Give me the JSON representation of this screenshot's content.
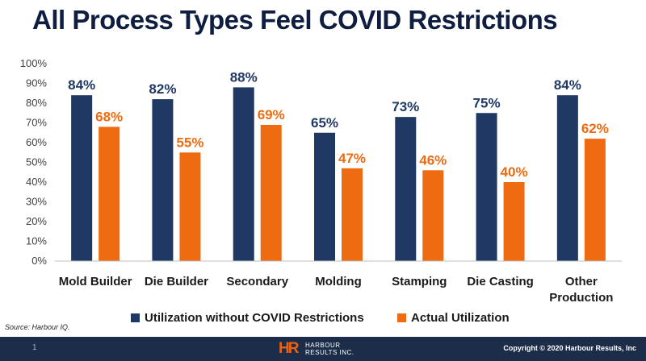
{
  "title": "All Process Types Feel COVID Restrictions",
  "source": "Source: Harbour IQ.",
  "footer": {
    "page_number": "1",
    "logo_mark": "HR",
    "logo_line1": "HARBOUR",
    "logo_line2": "RESULTS INC.",
    "copyright": "Copyright © 2020 Harbour Results, Inc"
  },
  "colors": {
    "navy": "#1f3864",
    "orange": "#ee6b12",
    "footer": "#1c2d49"
  },
  "chart_data": {
    "type": "bar",
    "categories": [
      "Mold Builder",
      "Die Builder",
      "Secondary",
      "Molding",
      "Stamping",
      "Die Casting",
      "Other Production"
    ],
    "category_lines": [
      [
        "Mold Builder"
      ],
      [
        "Die Builder"
      ],
      [
        "Secondary"
      ],
      [
        "Molding"
      ],
      [
        "Stamping"
      ],
      [
        "Die Casting"
      ],
      [
        "Other",
        "Production"
      ]
    ],
    "series": [
      {
        "name": "Utilization without COVID Restrictions",
        "color": "#1f3864",
        "values": [
          84,
          82,
          88,
          65,
          73,
          75,
          84
        ],
        "labels": [
          "84%",
          "82%",
          "88%",
          "65%",
          "73%",
          "75%",
          "84%"
        ]
      },
      {
        "name": "Actual Utilization",
        "color": "#ee6b12",
        "values": [
          68,
          55,
          69,
          47,
          46,
          40,
          62
        ],
        "labels": [
          "68%",
          "55%",
          "69%",
          "47%",
          "46%",
          "40%",
          "62%"
        ]
      }
    ],
    "yticks": [
      0,
      10,
      20,
      30,
      40,
      50,
      60,
      70,
      80,
      90,
      100
    ],
    "ytick_labels": [
      "0%",
      "10%",
      "20%",
      "30%",
      "40%",
      "50%",
      "60%",
      "70%",
      "80%",
      "90%",
      "100%"
    ],
    "ylim": [
      0,
      100
    ],
    "grid": false,
    "legend_position": "bottom"
  }
}
